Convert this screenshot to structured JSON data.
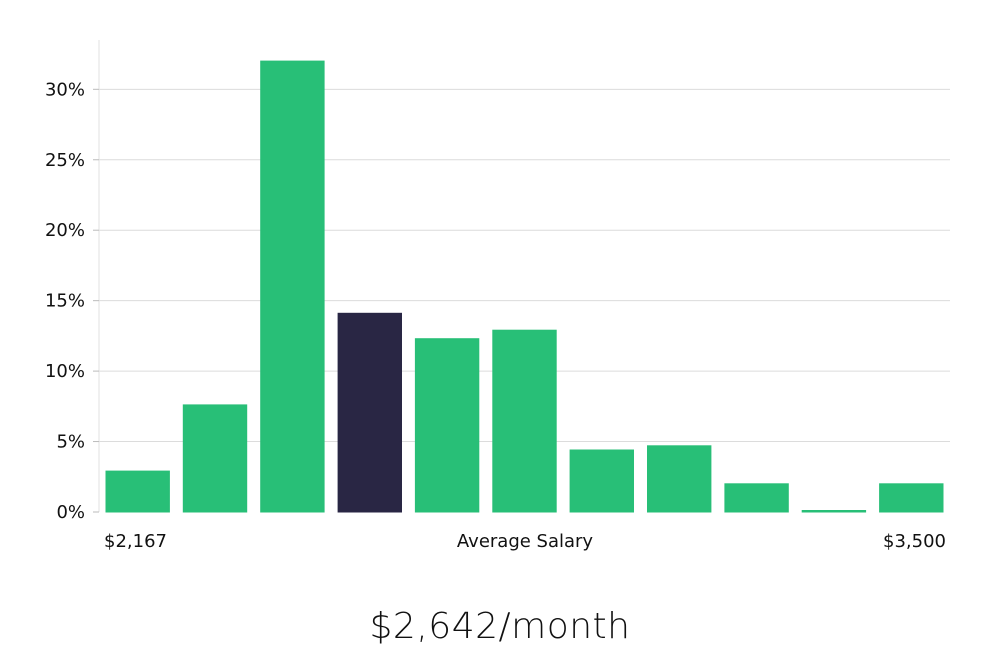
{
  "chart_data": {
    "type": "bar",
    "xlabel": "Average Salary",
    "x_start_label": "$2,167",
    "x_end_label": "$3,500",
    "values": [
      2.9,
      7.6,
      32.0,
      14.1,
      12.3,
      12.9,
      4.4,
      4.7,
      2.0,
      0.05,
      2.0
    ],
    "highlight_index": 3,
    "ylim": [
      0,
      33.5
    ],
    "yticks": [
      0,
      5,
      10,
      15,
      20,
      25,
      30
    ],
    "ytick_labels": [
      "0%",
      "5%",
      "10%",
      "15%",
      "20%",
      "25%",
      "30%"
    ],
    "grid": true,
    "colors": {
      "bar": "#28bf77",
      "highlight": "#292644"
    }
  },
  "summary": {
    "salary": "$2,642/month"
  }
}
